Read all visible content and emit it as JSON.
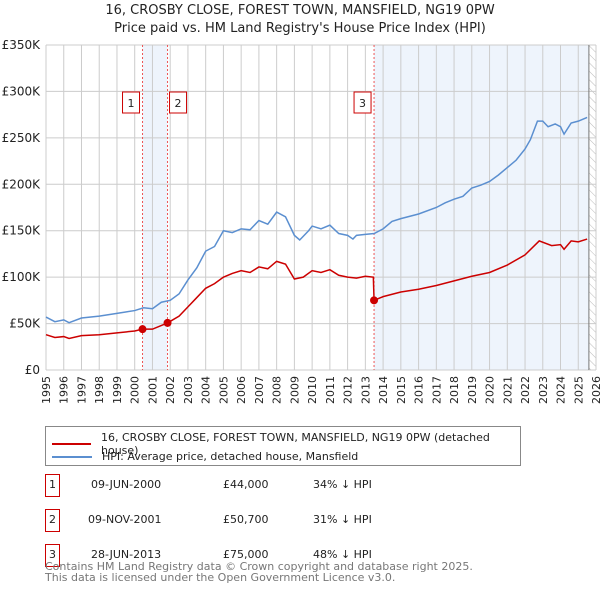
{
  "title": "16, CROSBY CLOSE, FOREST TOWN, MANSFIELD, NG19 0PW",
  "subtitle": "Price paid vs. HM Land Registry's House Price Index (HPI)",
  "chart_data": {
    "type": "line",
    "title": "16, CROSBY CLOSE, FOREST TOWN, MANSFIELD, NG19 0PW",
    "xlim": [
      1995,
      2026
    ],
    "ylim": [
      0,
      350000
    ],
    "x_ticks": [
      "1995",
      "1996",
      "1997",
      "1998",
      "1999",
      "2000",
      "2001",
      "2002",
      "2003",
      "2004",
      "2005",
      "2006",
      "2007",
      "2008",
      "2009",
      "2010",
      "2011",
      "2012",
      "2013",
      "2014",
      "2015",
      "2016",
      "2017",
      "2018",
      "2019",
      "2020",
      "2021",
      "2022",
      "2023",
      "2024",
      "2025",
      "2026"
    ],
    "y_ticks": [
      {
        "v": 0,
        "label": "£0"
      },
      {
        "v": 50000,
        "label": "£50K"
      },
      {
        "v": 100000,
        "label": "£100K"
      },
      {
        "v": 150000,
        "label": "£150K"
      },
      {
        "v": 200000,
        "label": "£200K"
      },
      {
        "v": 250000,
        "label": "£250K"
      },
      {
        "v": 300000,
        "label": "£300K"
      },
      {
        "v": 350000,
        "label": "£350K"
      }
    ],
    "grid": true,
    "series": [
      {
        "name": "16, CROSBY CLOSE, FOREST TOWN, MANSFIELD, NG19 0PW (detached house)",
        "color": "#cc0000",
        "x": [
          1995,
          1995.5,
          1996,
          1996.3,
          1997,
          1998,
          1999,
          2000,
          2000.44,
          2001,
          2001.85,
          2002.5,
          2003,
          2003.5,
          2004,
          2004.5,
          2005,
          2005.5,
          2006,
          2006.5,
          2007,
          2007.5,
          2008,
          2008.5,
          2009,
          2009.5,
          2010,
          2010.5,
          2011,
          2011.5,
          2012,
          2012.5,
          2013,
          2013.45,
          2013.49,
          2014,
          2015,
          2016,
          2017,
          2018,
          2019,
          2020,
          2021,
          2022,
          2022.8,
          2023.5,
          2024,
          2024.2,
          2024.6,
          2025,
          2025.5
        ],
        "y": [
          38000,
          35000,
          36000,
          34000,
          37000,
          38000,
          40000,
          42000,
          44000,
          44000,
          50700,
          58000,
          68000,
          78000,
          88000,
          93000,
          100000,
          104000,
          107000,
          105000,
          111000,
          109000,
          117000,
          114000,
          98000,
          100000,
          107000,
          105000,
          108000,
          102000,
          100000,
          99000,
          101000,
          100000,
          75000,
          79000,
          84000,
          87000,
          91000,
          96000,
          101000,
          105000,
          113000,
          124000,
          139000,
          134000,
          135000,
          130000,
          139000,
          138000,
          141000
        ]
      },
      {
        "name": "HPI: Average price, detached house, Mansfield",
        "color": "#5b8fd0",
        "x": [
          1995,
          1995.5,
          1996,
          1996.3,
          1997,
          1998,
          1999,
          2000,
          2000.5,
          2001,
          2001.5,
          2002,
          2002.5,
          2003,
          2003.5,
          2004,
          2004.5,
          2005,
          2005.5,
          2006,
          2006.5,
          2007,
          2007.5,
          2008,
          2008.5,
          2009,
          2009.3,
          2009.8,
          2010,
          2010.5,
          2011,
          2011.5,
          2012,
          2012.3,
          2012.5,
          2013,
          2013.5,
          2014,
          2014.5,
          2015,
          2016,
          2017,
          2017.5,
          2018,
          2018.5,
          2019,
          2019.5,
          2020,
          2020.5,
          2021,
          2021.5,
          2022,
          2022.3,
          2022.7,
          2023,
          2023.3,
          2023.7,
          2024,
          2024.2,
          2024.6,
          2025,
          2025.5
        ],
        "y": [
          57000,
          52000,
          54000,
          51000,
          56000,
          58000,
          61000,
          64000,
          67000,
          66000,
          73000,
          75000,
          82000,
          97000,
          110000,
          128000,
          133000,
          150000,
          148000,
          152000,
          151000,
          161000,
          157000,
          170000,
          165000,
          145000,
          140000,
          150000,
          155000,
          152000,
          156000,
          147000,
          145000,
          141000,
          145000,
          146000,
          147000,
          152000,
          160000,
          163000,
          168000,
          175000,
          180000,
          184000,
          187000,
          196000,
          199000,
          203000,
          210000,
          218000,
          226000,
          238000,
          248000,
          268000,
          268000,
          262000,
          265000,
          262000,
          254000,
          266000,
          268000,
          272000
        ]
      }
    ],
    "sales": [
      {
        "id": "1",
        "x": 2000.44,
        "y": 44000,
        "date": "09-JUN-2000",
        "price": "£44,000",
        "hpi": "34% ↓ HPI"
      },
      {
        "id": "2",
        "x": 2001.85,
        "y": 50700,
        "date": "09-NOV-2001",
        "price": "£50,700",
        "hpi": "31% ↓ HPI"
      },
      {
        "id": "3",
        "x": 2013.49,
        "y": 75000,
        "date": "28-JUN-2013",
        "price": "£75,000",
        "hpi": "48% ↓ HPI"
      }
    ],
    "shaded_ranges": [
      [
        2000.44,
        2001.85
      ],
      [
        2013.49,
        2025.6
      ]
    ],
    "forecast_hatch_from": 2025.6,
    "legend_placement": "below"
  },
  "legend": {
    "red": "16, CROSBY CLOSE, FOREST TOWN, MANSFIELD, NG19 0PW (detached house)",
    "blue": "HPI: Average price, detached house, Mansfield"
  },
  "footer": {
    "line1": "Contains HM Land Registry data © Crown copyright and database right 2025.",
    "line2": "This data is licensed under the Open Government Licence v3.0."
  }
}
